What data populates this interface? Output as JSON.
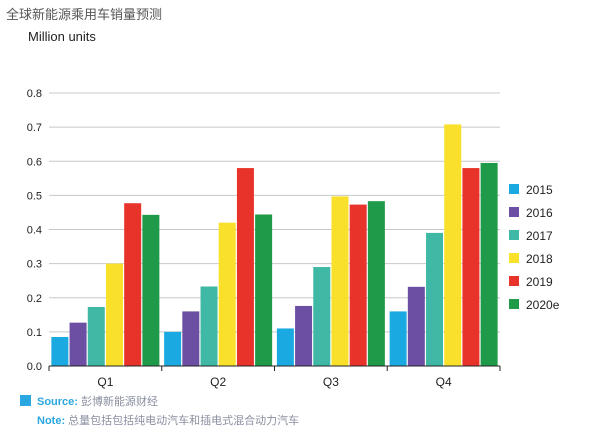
{
  "title": "全球新能源乘用车销量预测",
  "unit_label": "Million units",
  "chart_data": {
    "type": "bar",
    "title": "全球新能源乘用车销量预测",
    "ylabel": "Million units",
    "xlabel": "",
    "ylim": [
      0,
      0.8
    ],
    "yticks": [
      "0.0",
      "0.1",
      "0.2",
      "0.3",
      "0.4",
      "0.5",
      "0.6",
      "0.7",
      "0.8"
    ],
    "grid": true,
    "legend_position": "right",
    "categories": [
      "Q1",
      "Q2",
      "Q3",
      "Q4"
    ],
    "series": [
      {
        "name": "2015",
        "color": "#1ba9e1",
        "values": [
          0.085,
          0.1,
          0.11,
          0.16
        ]
      },
      {
        "name": "2016",
        "color": "#6c4fa3",
        "values": [
          0.127,
          0.16,
          0.176,
          0.232
        ]
      },
      {
        "name": "2017",
        "color": "#3fb8a5",
        "values": [
          0.173,
          0.233,
          0.29,
          0.39
        ]
      },
      {
        "name": "2018",
        "color": "#f9e12b",
        "values": [
          0.3,
          0.42,
          0.497,
          0.708
        ]
      },
      {
        "name": "2019",
        "color": "#e8332a",
        "values": [
          0.477,
          0.58,
          0.473,
          0.58
        ]
      },
      {
        "name": "2020e",
        "color": "#1f9a48",
        "values": [
          0.443,
          0.444,
          0.483,
          0.595
        ]
      }
    ]
  },
  "footer": {
    "source_key": "Source:",
    "source_value": "彭博新能源财经",
    "note_key": "Note:",
    "note_value": "总量包括包括纯电动汽车和插电式混合动力汽车"
  }
}
